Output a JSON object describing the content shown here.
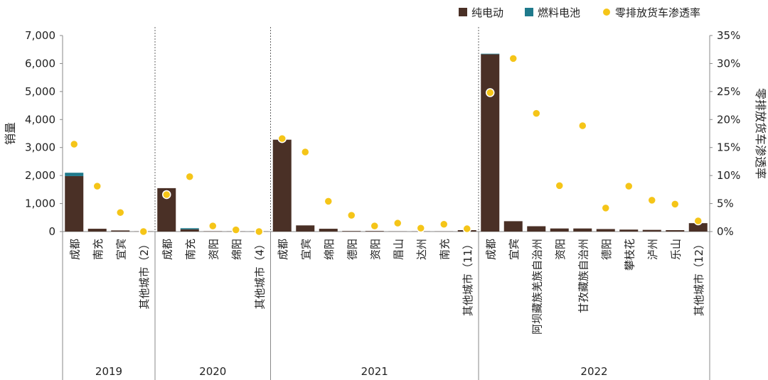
{
  "chart_data": {
    "type": "bar",
    "legend": {
      "placement": "top-right",
      "items": [
        {
          "label": "纯电动",
          "color": "#4a3026",
          "shape": "square"
        },
        {
          "label": "燃料电池",
          "color": "#1f7a8c",
          "shape": "square"
        },
        {
          "label": "零排放货车渗透率",
          "color": "#f5c518",
          "shape": "circle"
        }
      ]
    },
    "ylabel_left": "销量",
    "ylabel_right": "零排放货车渗透率",
    "ylim_left": [
      0,
      7000
    ],
    "ylim_right": [
      0,
      0.35
    ],
    "left_ticks": [
      "0",
      "1,000",
      "2,000",
      "3,000",
      "4,000",
      "5,000",
      "6,000",
      "7,000"
    ],
    "right_ticks": [
      "0%",
      "5%",
      "10%",
      "15%",
      "20%",
      "25%",
      "30%",
      "35%"
    ],
    "groups": [
      {
        "year": "2019",
        "categories": [
          "成都",
          "南充",
          "宜宾",
          "其他城市（2）"
        ]
      },
      {
        "year": "2020",
        "categories": [
          "成都",
          "南充",
          "资阳",
          "绵阳",
          "其他城市（4）"
        ]
      },
      {
        "year": "2021",
        "categories": [
          "成都",
          "宜宾",
          "绵阳",
          "德阳",
          "资阳",
          "眉山",
          "达州",
          "南充",
          "其他城市（11）"
        ]
      },
      {
        "year": "2022",
        "categories": [
          "成都",
          "宜宾",
          "阿坝藏族羌族自治州",
          "资阳",
          "甘孜藏族自治州",
          "德阳",
          "攀枝花",
          "泸州",
          "乐山",
          "其他城市（12）"
        ]
      }
    ],
    "series": [
      {
        "name": "纯电动",
        "axis": "left",
        "kind": "bar",
        "color": "#4a3026",
        "values": [
          1980,
          100,
          40,
          5,
          1550,
          80,
          10,
          5,
          5,
          3280,
          220,
          100,
          20,
          20,
          5,
          5,
          5,
          50,
          6330,
          370,
          190,
          110,
          110,
          90,
          70,
          60,
          50,
          300
        ]
      },
      {
        "name": "燃料电池",
        "axis": "left",
        "kind": "bar",
        "color": "#1f7a8c",
        "values": [
          120,
          0,
          0,
          0,
          0,
          40,
          0,
          0,
          0,
          0,
          0,
          0,
          0,
          0,
          0,
          0,
          0,
          0,
          20,
          0,
          0,
          0,
          0,
          0,
          0,
          0,
          0,
          0
        ]
      },
      {
        "name": "零排放货车渗透率",
        "axis": "right",
        "kind": "scatter",
        "color": "#f5c518",
        "values": [
          0.156,
          0.081,
          0.034,
          0.0,
          0.066,
          0.098,
          0.01,
          0.003,
          0.0,
          0.166,
          0.142,
          0.054,
          0.029,
          0.01,
          0.015,
          0.006,
          0.013,
          0.005,
          0.248,
          0.309,
          0.211,
          0.082,
          0.189,
          0.042,
          0.081,
          0.056,
          0.049,
          0.019
        ]
      }
    ]
  }
}
